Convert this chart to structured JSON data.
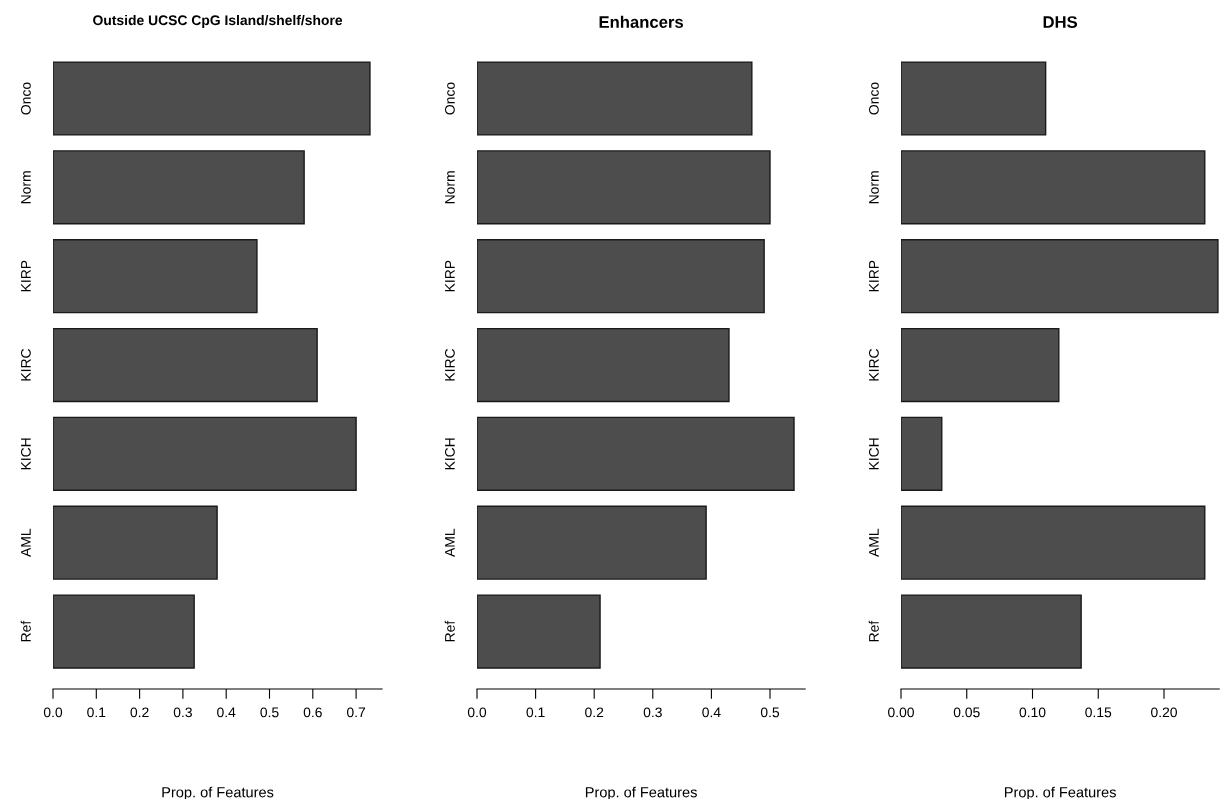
{
  "chart_data": [
    {
      "type": "bar",
      "orientation": "horizontal",
      "title": "Outside UCSC CpG Island/shelf/shore",
      "xlabel": "Prop. of Features",
      "categories": [
        "Onco",
        "Norm",
        "KIRP",
        "KIRC",
        "KICH",
        "AML",
        "Ref"
      ],
      "color": "#4d4d4d",
      "values": [
        0.732,
        0.58,
        0.471,
        0.61,
        0.7,
        0.379,
        0.326
      ],
      "xlim": [
        0,
        0.76
      ],
      "xticks": [
        {
          "value": 0,
          "label": "0.0"
        },
        0.1,
        0.2,
        0.3,
        0.4,
        0.5,
        0.6,
        0.7
      ],
      "grid": false,
      "legend": false
    },
    {
      "type": "bar",
      "orientation": "horizontal",
      "title": "Enhancers",
      "xlabel": "Prop. of Features",
      "categories": [
        "Onco",
        "Norm",
        "KIRP",
        "KIRC",
        "KICH",
        "AML",
        "Ref"
      ],
      "color": "#4d4d4d",
      "values": [
        0.469,
        0.5,
        0.49,
        0.43,
        0.541,
        0.391,
        0.21
      ],
      "xlim": [
        0,
        0.56
      ],
      "xticks": [
        {
          "value": 0,
          "label": "0.0"
        },
        0.1,
        0.2,
        0.3,
        0.4,
        0.5
      ],
      "grid": false,
      "legend": false
    },
    {
      "type": "bar",
      "orientation": "horizontal",
      "title": "DHS",
      "xlabel": "Prop. of Features",
      "categories": [
        "Onco",
        "Norm",
        "KIRP",
        "KIRC",
        "KICH",
        "AML",
        "Ref"
      ],
      "color": "#4d4d4d",
      "values": [
        0.11,
        0.231,
        0.241,
        0.12,
        0.031,
        0.231,
        0.137
      ],
      "xlim": [
        0,
        0.242
      ],
      "xticks": [
        {
          "value": 0.0,
          "label": "0.00"
        },
        {
          "value": 0.05,
          "label": "0.05"
        },
        {
          "value": 0.1,
          "label": "0.10"
        },
        {
          "value": 0.15,
          "label": "0.15"
        },
        {
          "value": 0.2,
          "label": "0.20"
        }
      ],
      "grid": false,
      "legend": false
    }
  ]
}
